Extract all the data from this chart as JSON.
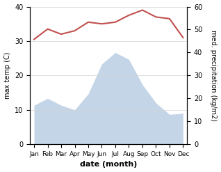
{
  "months": [
    "Jan",
    "Feb",
    "Mar",
    "Apr",
    "May",
    "Jun",
    "Jul",
    "Aug",
    "Sep",
    "Oct",
    "Nov",
    "Dec"
  ],
  "temperature": [
    30.5,
    33.5,
    32.0,
    33.0,
    35.5,
    35.0,
    35.5,
    37.5,
    39.0,
    37.0,
    36.5,
    31.0
  ],
  "precipitation": [
    17.0,
    20.0,
    17.0,
    15.0,
    22.0,
    35.0,
    40.0,
    37.0,
    26.0,
    18.0,
    13.0,
    13.5
  ],
  "temp_color": "#c0504d",
  "precip_fill_color": "#c5d5e8",
  "temp_ylim": [
    0,
    40
  ],
  "precip_ylim": [
    0,
    60
  ],
  "temp_yticks": [
    0,
    10,
    20,
    30,
    40
  ],
  "precip_yticks": [
    0,
    10,
    20,
    30,
    40,
    50,
    60
  ],
  "ylabel_left": "max temp (C)",
  "ylabel_right": "med. precipitation (kg/m2)",
  "xlabel": "date (month)",
  "figsize": [
    3.18,
    2.47
  ],
  "dpi": 100
}
